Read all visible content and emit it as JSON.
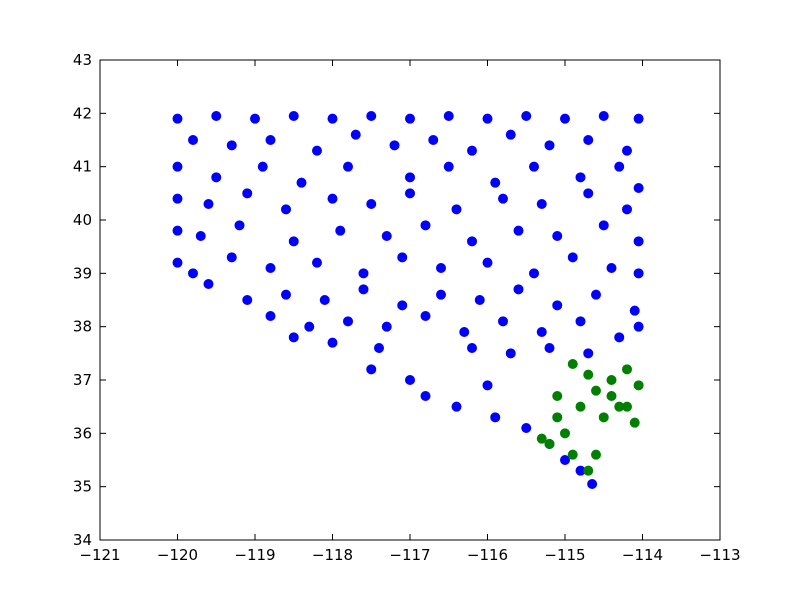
{
  "chart_data": {
    "type": "scatter",
    "title": "",
    "xlabel": "",
    "ylabel": "",
    "xlim": [
      -121,
      -113
    ],
    "ylim": [
      34,
      43
    ],
    "grid": false,
    "x_ticks": [
      -121,
      -120,
      -119,
      -118,
      -117,
      -116,
      -115,
      -114,
      -113
    ],
    "y_ticks": [
      34,
      35,
      36,
      37,
      38,
      39,
      40,
      41,
      42,
      43
    ],
    "x_tick_labels": [
      "−121",
      "−120",
      "−119",
      "−118",
      "−117",
      "−116",
      "−115",
      "−114",
      "−113"
    ],
    "y_tick_labels": [
      "34",
      "35",
      "36",
      "37",
      "38",
      "39",
      "40",
      "41",
      "42",
      "43"
    ],
    "series": [
      {
        "color": "#0000ff",
        "points": [
          [
            -120.0,
            41.9
          ],
          [
            -119.5,
            41.95
          ],
          [
            -119.0,
            41.9
          ],
          [
            -118.5,
            41.95
          ],
          [
            -118.0,
            41.9
          ],
          [
            -117.5,
            41.95
          ],
          [
            -117.0,
            41.9
          ],
          [
            -116.5,
            41.95
          ],
          [
            -116.0,
            41.9
          ],
          [
            -115.5,
            41.95
          ],
          [
            -115.0,
            41.9
          ],
          [
            -114.5,
            41.95
          ],
          [
            -114.05,
            41.9
          ],
          [
            -119.8,
            41.5
          ],
          [
            -119.3,
            41.4
          ],
          [
            -118.8,
            41.5
          ],
          [
            -118.2,
            41.3
          ],
          [
            -117.7,
            41.6
          ],
          [
            -117.2,
            41.4
          ],
          [
            -116.7,
            41.5
          ],
          [
            -116.2,
            41.3
          ],
          [
            -115.7,
            41.6
          ],
          [
            -115.2,
            41.4
          ],
          [
            -114.7,
            41.5
          ],
          [
            -114.2,
            41.3
          ],
          [
            -120.0,
            41.0
          ],
          [
            -119.5,
            40.8
          ],
          [
            -118.9,
            41.0
          ],
          [
            -118.4,
            40.7
          ],
          [
            -117.8,
            41.0
          ],
          [
            -117.0,
            40.8
          ],
          [
            -116.5,
            41.0
          ],
          [
            -115.9,
            40.7
          ],
          [
            -115.4,
            41.0
          ],
          [
            -114.8,
            40.8
          ],
          [
            -114.3,
            41.0
          ],
          [
            -114.05,
            40.6
          ],
          [
            -120.0,
            40.4
          ],
          [
            -119.6,
            40.3
          ],
          [
            -119.1,
            40.5
          ],
          [
            -118.6,
            40.2
          ],
          [
            -118.0,
            40.4
          ],
          [
            -117.5,
            40.3
          ],
          [
            -117.0,
            40.5
          ],
          [
            -116.4,
            40.2
          ],
          [
            -115.8,
            40.4
          ],
          [
            -115.3,
            40.3
          ],
          [
            -114.7,
            40.5
          ],
          [
            -114.2,
            40.2
          ],
          [
            -120.0,
            39.8
          ],
          [
            -119.7,
            39.7
          ],
          [
            -119.2,
            39.9
          ],
          [
            -118.5,
            39.6
          ],
          [
            -117.9,
            39.8
          ],
          [
            -117.3,
            39.7
          ],
          [
            -116.8,
            39.9
          ],
          [
            -116.2,
            39.6
          ],
          [
            -115.6,
            39.8
          ],
          [
            -115.1,
            39.7
          ],
          [
            -114.5,
            39.9
          ],
          [
            -114.05,
            39.6
          ],
          [
            -120.0,
            39.2
          ],
          [
            -119.8,
            39.0
          ],
          [
            -119.3,
            39.3
          ],
          [
            -118.8,
            39.1
          ],
          [
            -118.2,
            39.2
          ],
          [
            -117.6,
            39.0
          ],
          [
            -117.1,
            39.3
          ],
          [
            -116.6,
            39.1
          ],
          [
            -116.0,
            39.2
          ],
          [
            -115.4,
            39.0
          ],
          [
            -114.9,
            39.3
          ],
          [
            -114.4,
            39.1
          ],
          [
            -114.05,
            39.0
          ],
          [
            -119.6,
            38.8
          ],
          [
            -119.1,
            38.5
          ],
          [
            -118.6,
            38.6
          ],
          [
            -118.1,
            38.5
          ],
          [
            -117.6,
            38.7
          ],
          [
            -117.1,
            38.4
          ],
          [
            -116.6,
            38.6
          ],
          [
            -116.1,
            38.5
          ],
          [
            -115.6,
            38.7
          ],
          [
            -115.1,
            38.4
          ],
          [
            -114.6,
            38.6
          ],
          [
            -114.1,
            38.3
          ],
          [
            -118.8,
            38.2
          ],
          [
            -118.3,
            38.0
          ],
          [
            -117.8,
            38.1
          ],
          [
            -117.3,
            38.0
          ],
          [
            -116.8,
            38.2
          ],
          [
            -116.3,
            37.9
          ],
          [
            -115.8,
            38.1
          ],
          [
            -115.3,
            37.9
          ],
          [
            -114.8,
            38.1
          ],
          [
            -114.3,
            37.8
          ],
          [
            -114.05,
            38.0
          ],
          [
            -118.0,
            37.7
          ],
          [
            -117.4,
            37.6
          ],
          [
            -116.2,
            37.6
          ],
          [
            -115.7,
            37.5
          ],
          [
            -115.2,
            37.6
          ],
          [
            -114.7,
            37.5
          ],
          [
            -117.5,
            37.2
          ],
          [
            -117.0,
            37.0
          ],
          [
            -116.8,
            36.7
          ],
          [
            -116.4,
            36.5
          ],
          [
            -115.9,
            36.3
          ],
          [
            -115.5,
            36.1
          ],
          [
            -115.2,
            35.8
          ],
          [
            -115.0,
            35.5
          ],
          [
            -114.8,
            35.3
          ],
          [
            -114.65,
            35.05
          ],
          [
            -118.5,
            37.8
          ],
          [
            -116.0,
            36.9
          ]
        ]
      },
      {
        "color": "#008000",
        "points": [
          [
            -115.0,
            36.0
          ],
          [
            -115.2,
            35.8
          ],
          [
            -114.9,
            35.6
          ],
          [
            -114.7,
            35.3
          ],
          [
            -115.1,
            36.3
          ],
          [
            -114.8,
            36.5
          ],
          [
            -114.6,
            36.8
          ],
          [
            -114.4,
            37.0
          ],
          [
            -114.2,
            37.2
          ],
          [
            -114.05,
            36.9
          ],
          [
            -114.3,
            36.5
          ],
          [
            -114.1,
            36.2
          ],
          [
            -114.5,
            36.3
          ],
          [
            -114.7,
            37.1
          ],
          [
            -114.9,
            37.3
          ],
          [
            -115.1,
            36.7
          ],
          [
            -115.3,
            35.9
          ],
          [
            -114.6,
            35.6
          ],
          [
            -114.4,
            36.7
          ],
          [
            -114.2,
            36.5
          ]
        ]
      }
    ]
  }
}
